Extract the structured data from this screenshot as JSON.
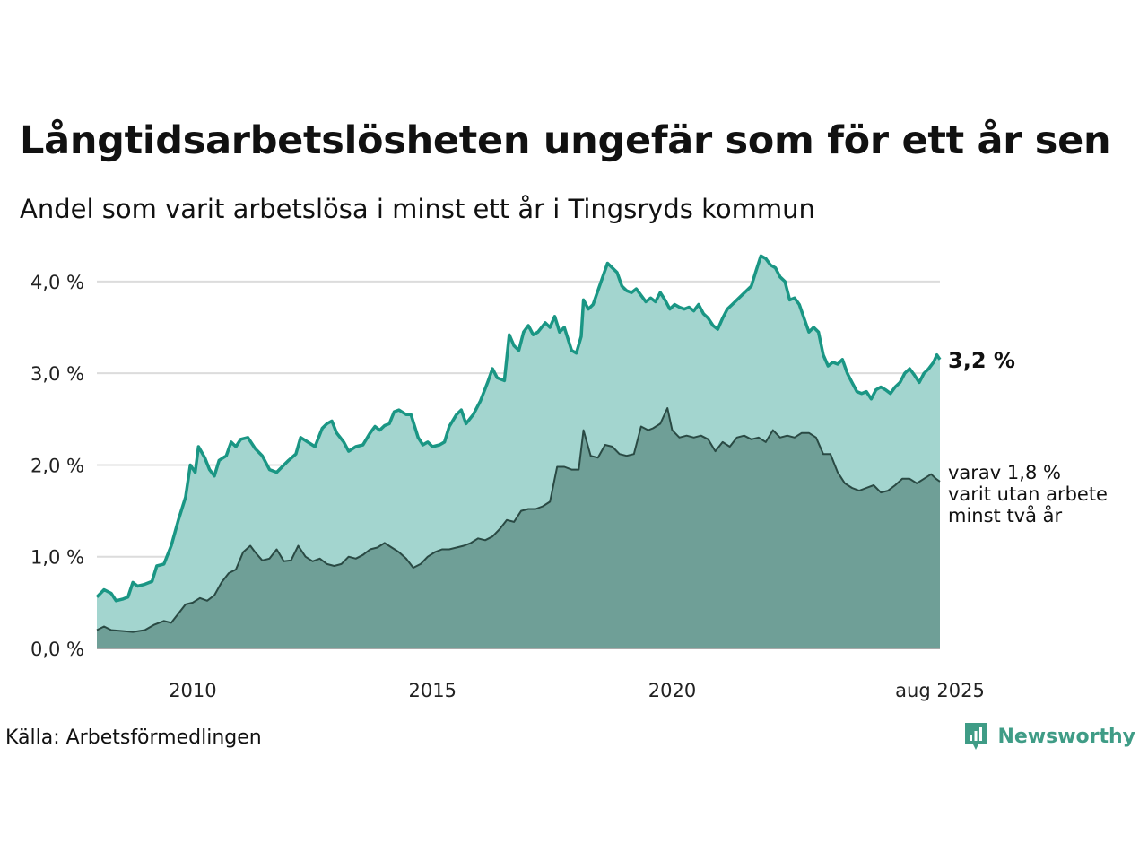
{
  "title": "Långtidsarbetslösheten ungefär som för ett år sen",
  "subtitle": "Andel som varit arbetslösa i minst ett år i Tingsryds kommun",
  "source": "Källa: Arbetsförmedlingen",
  "brand": "Newsworthy",
  "chart_data": {
    "type": "area",
    "x_range": [
      2008.0,
      2025.583
    ],
    "ylim": [
      0,
      4.4
    ],
    "y_ticks": [
      0,
      1,
      2,
      3,
      4
    ],
    "y_tick_labels": [
      "0,0 %",
      "1,0 %",
      "2,0 %",
      "3,0 %",
      "4,0 %"
    ],
    "x_ticks": [
      2010,
      2015,
      2020,
      2025.583
    ],
    "x_tick_labels": [
      "2010",
      "2015",
      "2020",
      "aug 2025"
    ],
    "grid": true,
    "series": [
      {
        "color": "#1a9684",
        "fill": "#a3d5cf",
        "end_label": "3,2 %",
        "points": [
          [
            2008.0,
            0.56
          ],
          [
            2008.15,
            0.64
          ],
          [
            2008.3,
            0.6
          ],
          [
            2008.4,
            0.52
          ],
          [
            2008.55,
            0.54
          ],
          [
            2008.65,
            0.56
          ],
          [
            2008.75,
            0.72
          ],
          [
            2008.85,
            0.68
          ],
          [
            2009.0,
            0.7
          ],
          [
            2009.15,
            0.73
          ],
          [
            2009.25,
            0.9
          ],
          [
            2009.4,
            0.92
          ],
          [
            2009.55,
            1.12
          ],
          [
            2009.7,
            1.4
          ],
          [
            2009.85,
            1.65
          ],
          [
            2009.95,
            2.0
          ],
          [
            2010.05,
            1.92
          ],
          [
            2010.12,
            2.2
          ],
          [
            2010.25,
            2.08
          ],
          [
            2010.35,
            1.95
          ],
          [
            2010.45,
            1.88
          ],
          [
            2010.55,
            2.05
          ],
          [
            2010.7,
            2.1
          ],
          [
            2010.8,
            2.25
          ],
          [
            2010.9,
            2.2
          ],
          [
            2011.0,
            2.28
          ],
          [
            2011.15,
            2.3
          ],
          [
            2011.3,
            2.18
          ],
          [
            2011.45,
            2.1
          ],
          [
            2011.6,
            1.95
          ],
          [
            2011.75,
            1.92
          ],
          [
            2011.9,
            2.0
          ],
          [
            2012.0,
            2.05
          ],
          [
            2012.15,
            2.12
          ],
          [
            2012.25,
            2.3
          ],
          [
            2012.4,
            2.25
          ],
          [
            2012.55,
            2.2
          ],
          [
            2012.7,
            2.4
          ],
          [
            2012.8,
            2.45
          ],
          [
            2012.9,
            2.48
          ],
          [
            2013.0,
            2.35
          ],
          [
            2013.15,
            2.25
          ],
          [
            2013.25,
            2.15
          ],
          [
            2013.4,
            2.2
          ],
          [
            2013.55,
            2.22
          ],
          [
            2013.7,
            2.35
          ],
          [
            2013.8,
            2.42
          ],
          [
            2013.9,
            2.38
          ],
          [
            2014.0,
            2.43
          ],
          [
            2014.1,
            2.45
          ],
          [
            2014.2,
            2.58
          ],
          [
            2014.3,
            2.6
          ],
          [
            2014.45,
            2.55
          ],
          [
            2014.55,
            2.55
          ],
          [
            2014.7,
            2.3
          ],
          [
            2014.8,
            2.22
          ],
          [
            2014.9,
            2.25
          ],
          [
            2015.0,
            2.2
          ],
          [
            2015.15,
            2.22
          ],
          [
            2015.25,
            2.25
          ],
          [
            2015.35,
            2.42
          ],
          [
            2015.5,
            2.55
          ],
          [
            2015.6,
            2.6
          ],
          [
            2015.7,
            2.45
          ],
          [
            2015.85,
            2.55
          ],
          [
            2016.0,
            2.7
          ],
          [
            2016.15,
            2.9
          ],
          [
            2016.25,
            3.05
          ],
          [
            2016.35,
            2.95
          ],
          [
            2016.5,
            2.92
          ],
          [
            2016.6,
            3.42
          ],
          [
            2016.7,
            3.3
          ],
          [
            2016.8,
            3.25
          ],
          [
            2016.9,
            3.45
          ],
          [
            2017.0,
            3.52
          ],
          [
            2017.1,
            3.42
          ],
          [
            2017.2,
            3.45
          ],
          [
            2017.35,
            3.55
          ],
          [
            2017.45,
            3.5
          ],
          [
            2017.55,
            3.62
          ],
          [
            2017.65,
            3.45
          ],
          [
            2017.75,
            3.5
          ],
          [
            2017.9,
            3.25
          ],
          [
            2018.0,
            3.22
          ],
          [
            2018.1,
            3.4
          ],
          [
            2018.15,
            3.8
          ],
          [
            2018.25,
            3.7
          ],
          [
            2018.35,
            3.75
          ],
          [
            2018.45,
            3.9
          ],
          [
            2018.55,
            4.05
          ],
          [
            2018.65,
            4.2
          ],
          [
            2018.75,
            4.15
          ],
          [
            2018.85,
            4.1
          ],
          [
            2018.95,
            3.95
          ],
          [
            2019.05,
            3.9
          ],
          [
            2019.15,
            3.88
          ],
          [
            2019.25,
            3.92
          ],
          [
            2019.35,
            3.85
          ],
          [
            2019.45,
            3.78
          ],
          [
            2019.55,
            3.82
          ],
          [
            2019.65,
            3.78
          ],
          [
            2019.75,
            3.88
          ],
          [
            2019.85,
            3.8
          ],
          [
            2019.95,
            3.7
          ],
          [
            2020.05,
            3.75
          ],
          [
            2020.15,
            3.72
          ],
          [
            2020.25,
            3.7
          ],
          [
            2020.35,
            3.72
          ],
          [
            2020.45,
            3.68
          ],
          [
            2020.55,
            3.75
          ],
          [
            2020.65,
            3.65
          ],
          [
            2020.75,
            3.6
          ],
          [
            2020.85,
            3.52
          ],
          [
            2020.95,
            3.48
          ],
          [
            2021.05,
            3.6
          ],
          [
            2021.15,
            3.7
          ],
          [
            2021.25,
            3.75
          ],
          [
            2021.35,
            3.8
          ],
          [
            2021.45,
            3.85
          ],
          [
            2021.55,
            3.9
          ],
          [
            2021.65,
            3.95
          ],
          [
            2021.75,
            4.12
          ],
          [
            2021.85,
            4.28
          ],
          [
            2021.95,
            4.25
          ],
          [
            2022.05,
            4.18
          ],
          [
            2022.15,
            4.15
          ],
          [
            2022.25,
            4.05
          ],
          [
            2022.35,
            4.0
          ],
          [
            2022.45,
            3.8
          ],
          [
            2022.55,
            3.82
          ],
          [
            2022.65,
            3.75
          ],
          [
            2022.75,
            3.6
          ],
          [
            2022.85,
            3.45
          ],
          [
            2022.95,
            3.5
          ],
          [
            2023.05,
            3.45
          ],
          [
            2023.15,
            3.2
          ],
          [
            2023.25,
            3.08
          ],
          [
            2023.35,
            3.12
          ],
          [
            2023.45,
            3.1
          ],
          [
            2023.55,
            3.15
          ],
          [
            2023.65,
            3.0
          ],
          [
            2023.75,
            2.9
          ],
          [
            2023.85,
            2.8
          ],
          [
            2023.95,
            2.78
          ],
          [
            2024.05,
            2.8
          ],
          [
            2024.15,
            2.72
          ],
          [
            2024.25,
            2.82
          ],
          [
            2024.35,
            2.85
          ],
          [
            2024.45,
            2.82
          ],
          [
            2024.55,
            2.78
          ],
          [
            2024.65,
            2.85
          ],
          [
            2024.75,
            2.9
          ],
          [
            2024.85,
            3.0
          ],
          [
            2024.95,
            3.05
          ],
          [
            2025.05,
            2.98
          ],
          [
            2025.15,
            2.9
          ],
          [
            2025.25,
            3.0
          ],
          [
            2025.35,
            3.05
          ],
          [
            2025.45,
            3.12
          ],
          [
            2025.52,
            3.2
          ],
          [
            2025.583,
            3.15
          ]
        ]
      },
      {
        "color": "#2a4a44",
        "fill": "#6f9f97",
        "end_label": "varav 1,8 % varit utan arbete minst två år",
        "end_label_lines": [
          "varav 1,8 %",
          "varit utan arbete",
          "minst två år"
        ],
        "points": [
          [
            2008.0,
            0.2
          ],
          [
            2008.15,
            0.24
          ],
          [
            2008.3,
            0.2
          ],
          [
            2008.55,
            0.19
          ],
          [
            2008.75,
            0.18
          ],
          [
            2009.0,
            0.2
          ],
          [
            2009.2,
            0.26
          ],
          [
            2009.4,
            0.3
          ],
          [
            2009.55,
            0.28
          ],
          [
            2009.7,
            0.38
          ],
          [
            2009.85,
            0.48
          ],
          [
            2010.0,
            0.5
          ],
          [
            2010.15,
            0.55
          ],
          [
            2010.3,
            0.52
          ],
          [
            2010.45,
            0.58
          ],
          [
            2010.6,
            0.72
          ],
          [
            2010.75,
            0.82
          ],
          [
            2010.9,
            0.86
          ],
          [
            2011.05,
            1.05
          ],
          [
            2011.2,
            1.12
          ],
          [
            2011.3,
            1.05
          ],
          [
            2011.45,
            0.96
          ],
          [
            2011.6,
            0.98
          ],
          [
            2011.75,
            1.08
          ],
          [
            2011.9,
            0.95
          ],
          [
            2012.05,
            0.96
          ],
          [
            2012.2,
            1.12
          ],
          [
            2012.35,
            1.0
          ],
          [
            2012.5,
            0.95
          ],
          [
            2012.65,
            0.98
          ],
          [
            2012.8,
            0.92
          ],
          [
            2012.95,
            0.9
          ],
          [
            2013.1,
            0.92
          ],
          [
            2013.25,
            1.0
          ],
          [
            2013.4,
            0.98
          ],
          [
            2013.55,
            1.02
          ],
          [
            2013.7,
            1.08
          ],
          [
            2013.85,
            1.1
          ],
          [
            2014.0,
            1.15
          ],
          [
            2014.15,
            1.1
          ],
          [
            2014.3,
            1.05
          ],
          [
            2014.45,
            0.98
          ],
          [
            2014.6,
            0.88
          ],
          [
            2014.75,
            0.92
          ],
          [
            2014.9,
            1.0
          ],
          [
            2015.05,
            1.05
          ],
          [
            2015.2,
            1.08
          ],
          [
            2015.35,
            1.08
          ],
          [
            2015.5,
            1.1
          ],
          [
            2015.65,
            1.12
          ],
          [
            2015.8,
            1.15
          ],
          [
            2015.95,
            1.2
          ],
          [
            2016.1,
            1.18
          ],
          [
            2016.25,
            1.22
          ],
          [
            2016.4,
            1.3
          ],
          [
            2016.55,
            1.4
          ],
          [
            2016.7,
            1.38
          ],
          [
            2016.85,
            1.5
          ],
          [
            2017.0,
            1.52
          ],
          [
            2017.15,
            1.52
          ],
          [
            2017.3,
            1.55
          ],
          [
            2017.45,
            1.6
          ],
          [
            2017.6,
            1.98
          ],
          [
            2017.75,
            1.98
          ],
          [
            2017.9,
            1.95
          ],
          [
            2018.05,
            1.95
          ],
          [
            2018.15,
            2.38
          ],
          [
            2018.3,
            2.1
          ],
          [
            2018.45,
            2.08
          ],
          [
            2018.6,
            2.22
          ],
          [
            2018.75,
            2.2
          ],
          [
            2018.9,
            2.12
          ],
          [
            2019.05,
            2.1
          ],
          [
            2019.2,
            2.12
          ],
          [
            2019.35,
            2.42
          ],
          [
            2019.5,
            2.38
          ],
          [
            2019.6,
            2.4
          ],
          [
            2019.75,
            2.45
          ],
          [
            2019.9,
            2.62
          ],
          [
            2020.0,
            2.38
          ],
          [
            2020.15,
            2.3
          ],
          [
            2020.3,
            2.32
          ],
          [
            2020.45,
            2.3
          ],
          [
            2020.6,
            2.32
          ],
          [
            2020.75,
            2.28
          ],
          [
            2020.9,
            2.15
          ],
          [
            2021.05,
            2.25
          ],
          [
            2021.2,
            2.2
          ],
          [
            2021.35,
            2.3
          ],
          [
            2021.5,
            2.32
          ],
          [
            2021.65,
            2.28
          ],
          [
            2021.8,
            2.3
          ],
          [
            2021.95,
            2.25
          ],
          [
            2022.1,
            2.38
          ],
          [
            2022.25,
            2.3
          ],
          [
            2022.4,
            2.32
          ],
          [
            2022.55,
            2.3
          ],
          [
            2022.7,
            2.35
          ],
          [
            2022.85,
            2.35
          ],
          [
            2023.0,
            2.3
          ],
          [
            2023.15,
            2.12
          ],
          [
            2023.3,
            2.12
          ],
          [
            2023.45,
            1.92
          ],
          [
            2023.6,
            1.8
          ],
          [
            2023.75,
            1.75
          ],
          [
            2023.9,
            1.72
          ],
          [
            2024.05,
            1.75
          ],
          [
            2024.2,
            1.78
          ],
          [
            2024.35,
            1.7
          ],
          [
            2024.5,
            1.72
          ],
          [
            2024.65,
            1.78
          ],
          [
            2024.8,
            1.85
          ],
          [
            2024.95,
            1.85
          ],
          [
            2025.1,
            1.8
          ],
          [
            2025.25,
            1.85
          ],
          [
            2025.4,
            1.9
          ],
          [
            2025.5,
            1.85
          ],
          [
            2025.583,
            1.82
          ]
        ]
      }
    ]
  }
}
